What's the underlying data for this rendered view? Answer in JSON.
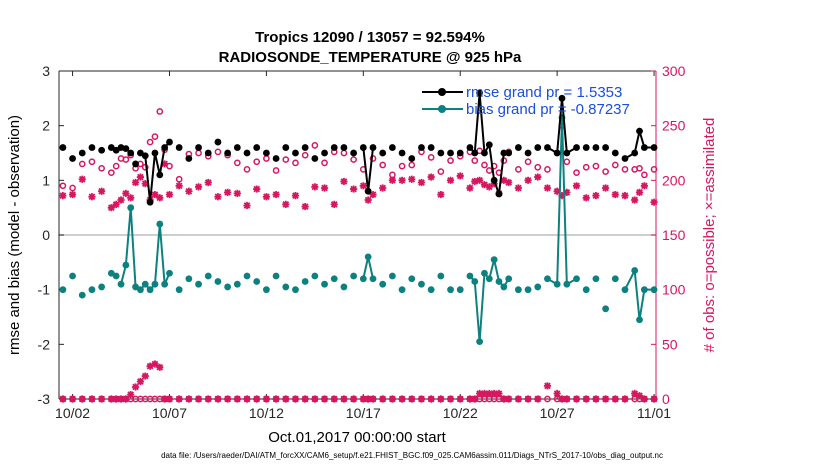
{
  "figure": {
    "title_line1": "Tropics 12090 / 13057 = 92.594%",
    "title_line2": "RADIOSONDE_TEMPERATURE @ 925 hPa",
    "footnote": "data file: /Users/raeder/DAI/ATM_forcXX/CAM6_setup/f.e21.FHIST_BGC.f09_025.CAM6assim.011/Diags_NTrS_2017-10/obs_diag_output.nc"
  },
  "colors": {
    "rmse": "#000000",
    "bias": "#0d8080",
    "obs": "#d6175f",
    "zero_line": "#bdbdbd"
  },
  "chart_data": {
    "type": "line",
    "title": "Tropics 12090 / 13057 = 92.594%  RADIOSONDE_TEMPERATURE @ 925 hPa",
    "xlabel": "Oct.01,2017 00:00:00 start",
    "ylabel": "rmse and bias (model - observation)",
    "y2label": "# of obs: o=possible; ×=assimilated",
    "xlim": [
      1.3,
      32.1
    ],
    "ylim": [
      -3,
      3
    ],
    "y2lim": [
      0,
      300
    ],
    "x_ticks": [
      2,
      7,
      12,
      17,
      22,
      27,
      32
    ],
    "x_tick_labels": [
      "10/02",
      "10/07",
      "10/12",
      "10/17",
      "10/22",
      "10/27",
      "11/01"
    ],
    "y_ticks": [
      -3,
      -2,
      -1,
      0,
      1,
      2,
      3
    ],
    "y_tick_labels": [
      "-3",
      "-2",
      "-1",
      "0",
      "1",
      "2",
      "3"
    ],
    "y2_ticks": [
      0,
      50,
      100,
      150,
      200,
      250,
      300
    ],
    "y2_tick_labels": [
      "0",
      "50",
      "100",
      "150",
      "200",
      "250",
      "300"
    ],
    "legend_position": "top-right",
    "x": [
      1.5,
      2.0,
      2.5,
      3.0,
      3.5,
      4.0,
      4.25,
      4.5,
      4.75,
      5.0,
      5.25,
      5.5,
      5.75,
      6.0,
      6.25,
      6.5,
      6.75,
      7.0,
      7.5,
      8.0,
      8.5,
      9.0,
      9.5,
      10.0,
      10.5,
      11.0,
      11.5,
      12.0,
      12.5,
      13.0,
      13.5,
      14.0,
      14.5,
      15.0,
      15.5,
      16.0,
      16.5,
      17.0,
      17.25,
      17.5,
      18.0,
      18.5,
      19.0,
      19.5,
      20.0,
      20.5,
      21.0,
      21.5,
      22.0,
      22.5,
      22.75,
      23.0,
      23.25,
      23.5,
      23.75,
      24.0,
      24.25,
      24.5,
      25.0,
      25.5,
      26.0,
      26.5,
      27.0,
      27.25,
      27.5,
      28.0,
      28.5,
      29.0,
      29.5,
      30.0,
      30.5,
      31.0,
      31.25,
      31.5,
      32.0
    ],
    "series": [
      {
        "name": "rmse",
        "legend_label": "rmse grand pr = 1.5353",
        "values": [
          1.6,
          1.4,
          1.5,
          1.6,
          1.55,
          1.6,
          1.55,
          1.6,
          1.58,
          1.5,
          1.3,
          1.5,
          1.45,
          0.6,
          1.5,
          1.1,
          1.6,
          1.7,
          1.6,
          1.4,
          1.6,
          1.5,
          1.7,
          1.5,
          1.6,
          1.5,
          1.6,
          1.5,
          1.4,
          1.6,
          1.5,
          1.6,
          1.4,
          1.5,
          1.6,
          1.6,
          1.5,
          1.6,
          0.8,
          1.6,
          1.5,
          1.6,
          1.5,
          1.4,
          1.6,
          1.6,
          1.5,
          1.5,
          1.5,
          1.6,
          1.5,
          2.6,
          1.5,
          1.65,
          1.0,
          0.75,
          1.5,
          1.5,
          1.6,
          1.5,
          1.6,
          1.6,
          1.5,
          2.5,
          1.5,
          1.6,
          1.6,
          1.6,
          1.6,
          1.5,
          1.4,
          1.5,
          1.9,
          1.6,
          1.6
        ],
        "markers": [
          true,
          true,
          true,
          true,
          true,
          true,
          true,
          true,
          true,
          true,
          true,
          true,
          true,
          true,
          true,
          true,
          true,
          true,
          true,
          true,
          true,
          true,
          true,
          true,
          true,
          true,
          true,
          true,
          true,
          true,
          true,
          true,
          true,
          true,
          true,
          true,
          true,
          true,
          true,
          true,
          true,
          true,
          true,
          true,
          true,
          true,
          true,
          true,
          true,
          true,
          true,
          true,
          true,
          true,
          true,
          true,
          true,
          true,
          true,
          true,
          true,
          true,
          true,
          true,
          true,
          true,
          true,
          true,
          true,
          true,
          true,
          true,
          true,
          true,
          true
        ],
        "line_runs": [
          [
            11,
            17
          ],
          [
            37,
            39
          ],
          [
            49,
            57
          ],
          [
            61,
            65
          ],
          [
            70,
            74
          ]
        ]
      },
      {
        "name": "bias",
        "legend_label": "bias grand pr = -0.87237",
        "values": [
          -1.0,
          -0.75,
          -1.1,
          -1.0,
          -0.95,
          -0.7,
          -0.75,
          -0.9,
          -0.55,
          0.5,
          -0.95,
          -1.0,
          -0.9,
          -1.0,
          -0.9,
          0.2,
          -0.9,
          -0.7,
          -1.0,
          -0.8,
          -0.9,
          -0.75,
          -0.85,
          -0.95,
          -0.9,
          -0.75,
          -0.85,
          -1.0,
          -0.75,
          -0.95,
          -1.0,
          -0.85,
          -0.75,
          -0.9,
          -0.8,
          -0.95,
          -0.75,
          -0.8,
          -0.4,
          -0.8,
          -0.9,
          -0.75,
          -1.0,
          -0.8,
          -0.9,
          -1.0,
          -0.75,
          -1.0,
          -1.0,
          -0.75,
          -0.85,
          -1.95,
          -0.7,
          -0.8,
          -0.45,
          -0.85,
          -0.95,
          -0.8,
          -1.0,
          -1.0,
          -0.95,
          -0.8,
          -0.9,
          2.15,
          -0.9,
          -0.8,
          -1.0,
          -0.8,
          -1.35,
          -0.8,
          -1.0,
          -0.65,
          -1.55,
          -1.0,
          -1.0
        ],
        "line_runs": [
          [
            7,
            17
          ],
          [
            37,
            39
          ],
          [
            49,
            57
          ],
          [
            61,
            65
          ],
          [
            70,
            74
          ]
        ]
      },
      {
        "name": "obs_possible",
        "marker": "o",
        "values": [
          195,
          193,
          215,
          217,
          211,
          207,
          213,
          220,
          219,
          223,
          211,
          215,
          212,
          235,
          240,
          263,
          228,
          213,
          201,
          224,
          225,
          222,
          226,
          223,
          216,
          210,
          217,
          220,
          209,
          219,
          216,
          223,
          232,
          216,
          226,
          225,
          219,
          210,
          190,
          220,
          214,
          205,
          213,
          214,
          226,
          221,
          208,
          218,
          222,
          226,
          218,
          227,
          214,
          209,
          213,
          207,
          218,
          226,
          210,
          217,
          212,
          210,
          225,
          250,
          217,
          207,
          212,
          213,
          208,
          214,
          210,
          210,
          211,
          205,
          210
        ]
      },
      {
        "name": "obs_assimilated",
        "marker": "x",
        "values": [
          186,
          187,
          201,
          185,
          190,
          175,
          178,
          182,
          188,
          184,
          198,
          203,
          197,
          182,
          187,
          184,
          215,
          187,
          195,
          190,
          194,
          198,
          185,
          189,
          188,
          177,
          192,
          185,
          187,
          178,
          186,
          176,
          194,
          193,
          178,
          199,
          192,
          195,
          182,
          187,
          193,
          200,
          200,
          201,
          198,
          203,
          187,
          200,
          204,
          193,
          199,
          200,
          196,
          194,
          197,
          188,
          200,
          198,
          193,
          200,
          203,
          193,
          190,
          186,
          189,
          195,
          184,
          186,
          193,
          187,
          186,
          182,
          189,
          195,
          180
        ]
      },
      {
        "name": "obs_rejected_low",
        "marker": "x",
        "values": [
          0,
          0,
          0,
          0,
          0,
          0,
          0,
          0,
          0,
          4,
          11,
          16,
          21,
          30,
          32,
          29,
          0,
          0,
          0,
          0,
          0,
          0,
          0,
          0,
          0,
          0,
          0,
          0,
          0,
          0,
          0,
          0,
          0,
          0,
          0,
          0,
          0,
          0,
          0,
          0,
          0,
          0,
          0,
          0,
          0,
          0,
          0,
          0,
          0,
          0,
          0,
          5,
          5,
          5,
          5,
          5,
          0,
          0,
          0,
          0,
          0,
          12,
          5,
          0,
          0,
          0,
          0,
          0,
          0,
          0,
          0,
          5,
          3,
          0,
          0
        ]
      },
      {
        "name": "obs_possible_low",
        "marker": "o",
        "values": [
          0,
          0,
          0,
          0,
          0,
          0,
          0,
          0,
          0,
          0,
          0,
          0,
          0,
          0,
          0,
          0,
          0,
          0,
          0,
          0,
          0,
          0,
          0,
          0,
          0,
          0,
          0,
          0,
          0,
          0,
          0,
          0,
          0,
          0,
          0,
          0,
          0,
          0,
          0,
          0,
          0,
          0,
          0,
          0,
          0,
          0,
          0,
          0,
          0,
          0,
          0,
          0,
          0,
          0,
          0,
          0,
          0,
          0,
          0,
          0,
          0,
          0,
          0,
          0,
          0,
          0,
          0,
          0,
          0,
          0,
          0,
          0,
          0,
          0,
          0
        ]
      }
    ]
  }
}
